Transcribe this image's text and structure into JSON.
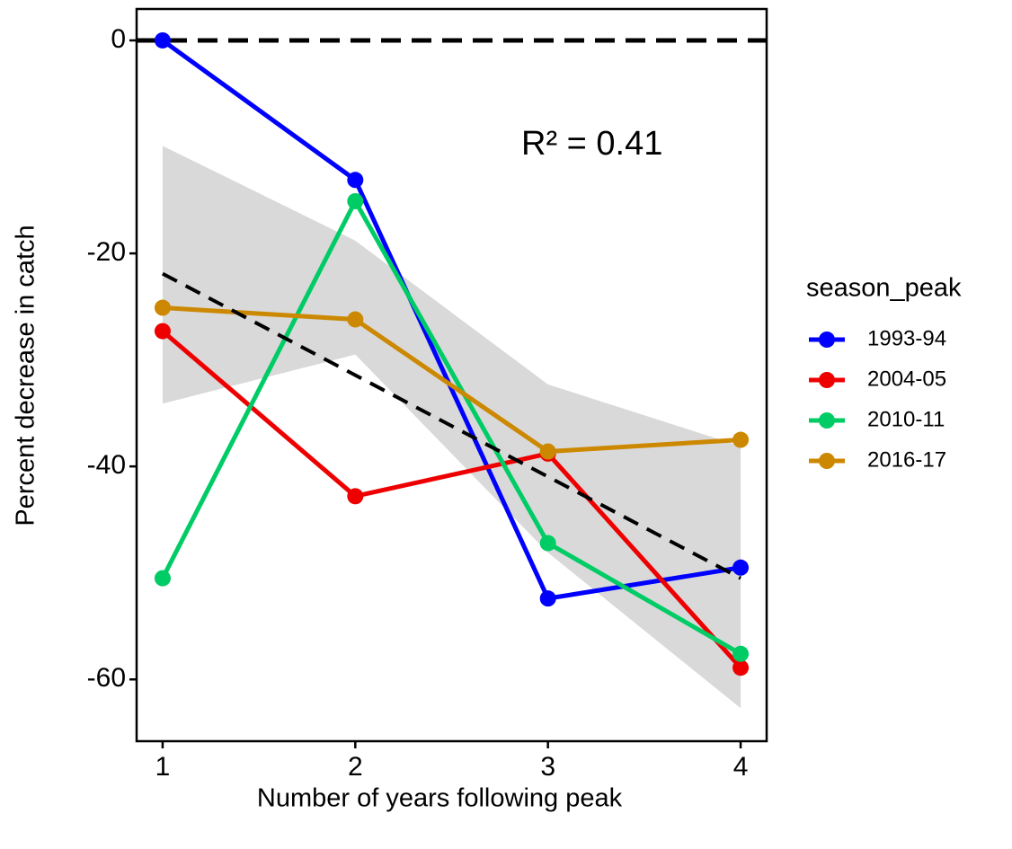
{
  "chart_data": {
    "type": "line",
    "x_label": "Number of years following peak",
    "y_label": "Percent decrease in catch",
    "annotation": "R² = 0.41",
    "legend_title": "season_peak",
    "legend": "right",
    "x": [
      1,
      2,
      3,
      4
    ],
    "xlim": [
      0.865,
      4.135
    ],
    "xticks": [
      1,
      2,
      3,
      4
    ],
    "ylim": [
      -65.8,
      2.95
    ],
    "yticks": [
      -60,
      -40,
      -20,
      0
    ],
    "hline": 0,
    "trend": {
      "x": [
        1,
        4
      ],
      "values": [
        -21.9,
        -50.5
      ],
      "color": "#000000"
    },
    "band": {
      "x": [
        1,
        2,
        3,
        4
      ],
      "upper": [
        -9.9,
        -18.8,
        -32.3,
        -38.1
      ],
      "lower": [
        -34.1,
        -29.5,
        -48.1,
        -62.7
      ],
      "color": "#d9d9d9"
    },
    "series": [
      {
        "name": "1993-94",
        "color": "#0000ff",
        "values": [
          0,
          -13.1,
          -52.4,
          -49.5
        ]
      },
      {
        "name": "2004-05",
        "color": "#ee0000",
        "values": [
          -27.3,
          -42.8,
          -38.8,
          -58.9
        ]
      },
      {
        "name": "2010-11",
        "color": "#00cc66",
        "values": [
          -50.5,
          -15.1,
          -47.2,
          -57.6
        ]
      },
      {
        "name": "2016-17",
        "color": "#cc8800",
        "values": [
          -25.1,
          -26.2,
          -38.6,
          -37.5
        ]
      }
    ]
  }
}
